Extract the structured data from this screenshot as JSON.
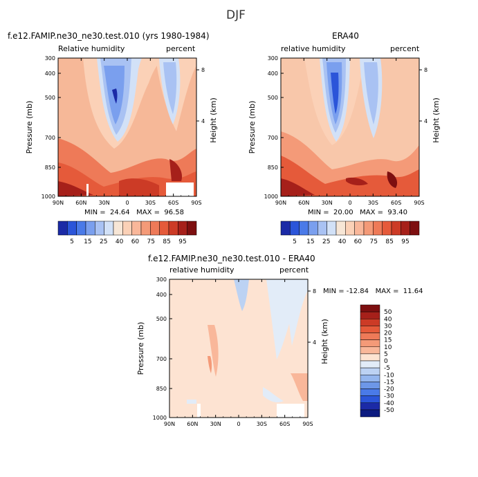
{
  "page": {
    "main_title": "DJF"
  },
  "colors": {
    "plot_bg_model": "#f6b898",
    "plot_bg_obs": "#f8c7aa",
    "plot_bg_diff": "#fde3d2",
    "axis": "#000000"
  },
  "chart_data": [
    {
      "type": "heatmap",
      "title": "f.e12.FAMIP.ne30_ne30.test.010 (yrs 1980-1984)",
      "left_label": "Relative humidity",
      "right_label": "percent",
      "xlabel": "",
      "ylabel": "Pressure (mb)",
      "y2label": "Height (km)",
      "x_ticks": [
        "90N",
        "60N",
        "30N",
        "0",
        "30S",
        "60S",
        "90S"
      ],
      "y_ticks": [
        "300",
        "400",
        "500",
        "700",
        "850",
        "1000"
      ],
      "y2_ticks": [
        "8",
        "4"
      ],
      "stats": "MIN =  24.64   MAX =  96.58",
      "colorbar": {
        "levels": [
          "5",
          "15",
          "25",
          "40",
          "60",
          "75",
          "85",
          "95"
        ],
        "colors": [
          "#1b2aa6",
          "#2b55d9",
          "#4a7ae8",
          "#7a9fee",
          "#a9c2f3",
          "#d2e1f7",
          "#f7e6d6",
          "#fbd1b7",
          "#f9b79a",
          "#f49a78",
          "#ee7a58",
          "#e55a3a",
          "#cc3b26",
          "#a6201a",
          "#7d0f10"
        ]
      }
    },
    {
      "type": "heatmap",
      "title": "ERA40",
      "left_label": "relative humidity",
      "right_label": "percent",
      "xlabel": "",
      "ylabel": "Pressure (mb)",
      "y2label": "Height (km)",
      "x_ticks": [
        "90N",
        "60N",
        "30N",
        "0",
        "30S",
        "60S",
        "90S"
      ],
      "y_ticks": [
        "300",
        "400",
        "500",
        "700",
        "850",
        "1000"
      ],
      "y2_ticks": [
        "8",
        "4"
      ],
      "stats": "MIN =  20.00   MAX =  93.40",
      "colorbar": {
        "levels": [
          "5",
          "15",
          "25",
          "40",
          "60",
          "75",
          "85",
          "95"
        ],
        "colors": [
          "#1b2aa6",
          "#2b55d9",
          "#4a7ae8",
          "#7a9fee",
          "#a9c2f3",
          "#d2e1f7",
          "#f7e6d6",
          "#fbd1b7",
          "#f9b79a",
          "#f49a78",
          "#ee7a58",
          "#e55a3a",
          "#cc3b26",
          "#a6201a",
          "#7d0f10"
        ]
      }
    },
    {
      "type": "heatmap",
      "title": "f.e12.FAMIP.ne30_ne30.test.010 - ERA40",
      "left_label": "relative humidity",
      "right_label": "percent",
      "xlabel": "",
      "ylabel": "Pressure (mb)",
      "y2label": "Height (km)",
      "x_ticks": [
        "90N",
        "60N",
        "30N",
        "0",
        "30S",
        "60S",
        "90S"
      ],
      "y_ticks": [
        "300",
        "400",
        "500",
        "700",
        "850",
        "1000"
      ],
      "y2_ticks": [
        "8",
        "4"
      ],
      "stats": "MIN = -12.84   MAX =  11.64",
      "colorbar": {
        "levels": [
          "50",
          "40",
          "30",
          "20",
          "15",
          "10",
          "5",
          "0",
          "-5",
          "-10",
          "-15",
          "-20",
          "-30",
          "-40",
          "-50"
        ],
        "colors": [
          "#7d0f10",
          "#a6201a",
          "#cc3b26",
          "#e55a3a",
          "#ee7a58",
          "#f49a78",
          "#f9b79a",
          "#fde3d2",
          "#e2ecf8",
          "#bcd2f3",
          "#94b6ee",
          "#6d97e8",
          "#4a7ae8",
          "#2b55d9",
          "#1b2aa6",
          "#0c1b80"
        ]
      }
    }
  ]
}
